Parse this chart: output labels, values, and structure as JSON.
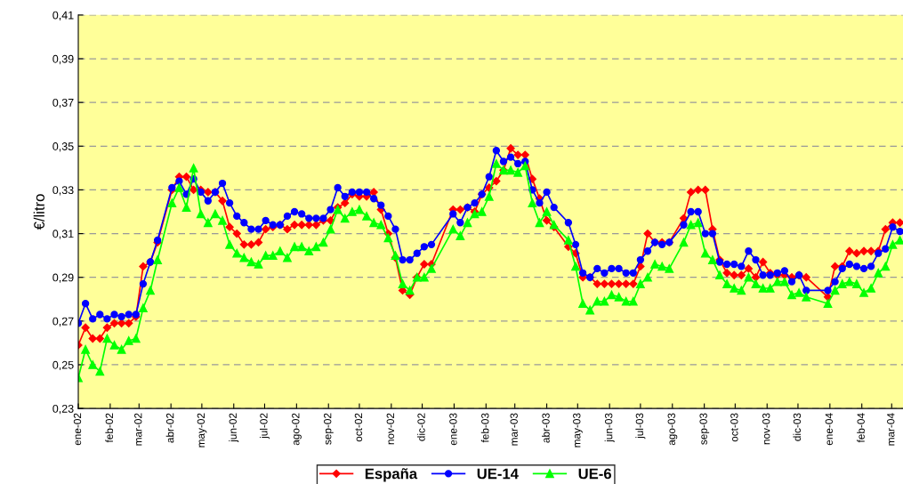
{
  "chart_data": {
    "type": "line",
    "ylabel": "€/litro",
    "x": [
      "2002-01-01",
      "2002-01-08",
      "2002-01-15",
      "2002-01-22",
      "2002-01-29",
      "2002-02-05",
      "2002-02-12",
      "2002-02-19",
      "2002-02-26",
      "2002-03-05",
      "2002-03-12",
      "2002-03-19",
      "2002-04-02",
      "2002-04-09",
      "2002-04-16",
      "2002-04-23",
      "2002-04-30",
      "2002-05-07",
      "2002-05-14",
      "2002-05-21",
      "2002-05-28",
      "2002-06-04",
      "2002-06-11",
      "2002-06-18",
      "2002-06-25",
      "2002-07-02",
      "2002-07-09",
      "2002-07-16",
      "2002-07-23",
      "2002-07-30",
      "2002-08-06",
      "2002-08-13",
      "2002-08-20",
      "2002-08-27",
      "2002-09-03",
      "2002-09-10",
      "2002-09-17",
      "2002-09-24",
      "2002-10-01",
      "2002-10-08",
      "2002-10-15",
      "2002-10-22",
      "2002-10-29",
      "2002-11-05",
      "2002-11-12",
      "2002-11-19",
      "2002-11-26",
      "2002-12-03",
      "2002-12-10",
      "2002-12-31",
      "2003-01-07",
      "2003-01-14",
      "2003-01-21",
      "2003-01-28",
      "2003-02-04",
      "2003-02-11",
      "2003-02-18",
      "2003-02-25",
      "2003-03-04",
      "2003-03-11",
      "2003-03-18",
      "2003-03-25",
      "2003-04-01",
      "2003-04-08",
      "2003-04-22",
      "2003-04-29",
      "2003-05-06",
      "2003-05-13",
      "2003-05-20",
      "2003-05-27",
      "2003-06-03",
      "2003-06-10",
      "2003-06-17",
      "2003-06-24",
      "2003-07-01",
      "2003-07-08",
      "2003-07-15",
      "2003-07-22",
      "2003-07-29",
      "2003-08-12",
      "2003-08-19",
      "2003-08-26",
      "2003-09-02",
      "2003-09-09",
      "2003-09-16",
      "2003-09-23",
      "2003-09-30",
      "2003-10-07",
      "2003-10-14",
      "2003-10-21",
      "2003-10-28",
      "2003-11-04",
      "2003-11-11",
      "2003-11-18",
      "2003-11-25",
      "2003-12-02",
      "2003-12-09",
      "2003-12-30",
      "2004-01-06",
      "2004-01-13",
      "2004-01-20",
      "2004-01-27",
      "2004-02-03",
      "2004-02-10",
      "2004-02-17",
      "2004-02-24",
      "2004-03-02",
      "2004-03-09"
    ],
    "series": [
      {
        "name": "España",
        "color": "#ff0000",
        "marker": "diamond",
        "values": [
          0.259,
          0.267,
          0.262,
          0.262,
          0.267,
          0.269,
          0.269,
          0.269,
          0.272,
          0.295,
          0.297,
          0.306,
          0.33,
          0.336,
          0.336,
          0.33,
          0.33,
          0.329,
          0.329,
          0.325,
          0.313,
          0.31,
          0.305,
          0.305,
          0.306,
          0.312,
          0.313,
          0.314,
          0.312,
          0.314,
          0.314,
          0.314,
          0.314,
          0.316,
          0.316,
          0.322,
          0.324,
          0.328,
          0.327,
          0.327,
          0.329,
          0.321,
          0.31,
          0.299,
          0.284,
          0.282,
          0.29,
          0.296,
          0.296,
          0.321,
          0.321,
          0.322,
          0.32,
          0.328,
          0.331,
          0.334,
          0.339,
          0.349,
          0.346,
          0.346,
          0.335,
          0.326,
          0.316,
          0.313,
          0.304,
          0.301,
          0.29,
          0.29,
          0.287,
          0.287,
          0.287,
          0.287,
          0.287,
          0.287,
          0.295,
          0.31,
          0.306,
          0.306,
          0.306,
          0.317,
          0.329,
          0.33,
          0.33,
          0.312,
          0.298,
          0.292,
          0.291,
          0.291,
          0.294,
          0.29,
          0.297,
          0.292,
          0.291,
          0.291,
          0.29,
          0.291,
          0.29,
          0.281,
          0.295,
          0.295,
          0.302,
          0.301,
          0.302,
          0.302,
          0.302,
          0.312,
          0.315,
          0.315
        ]
      },
      {
        "name": "UE-14",
        "color": "#0000ff",
        "marker": "circle",
        "values": [
          0.269,
          0.278,
          0.271,
          0.273,
          0.271,
          0.273,
          0.272,
          0.273,
          0.273,
          0.287,
          0.297,
          0.307,
          0.331,
          0.334,
          0.328,
          0.335,
          0.329,
          0.325,
          0.329,
          0.333,
          0.324,
          0.318,
          0.315,
          0.312,
          0.312,
          0.316,
          0.314,
          0.314,
          0.318,
          0.32,
          0.319,
          0.317,
          0.317,
          0.317,
          0.321,
          0.331,
          0.327,
          0.329,
          0.329,
          0.329,
          0.326,
          0.323,
          0.318,
          0.312,
          0.298,
          0.298,
          0.301,
          0.304,
          0.305,
          0.319,
          0.315,
          0.322,
          0.324,
          0.328,
          0.336,
          0.348,
          0.343,
          0.345,
          0.342,
          0.343,
          0.33,
          0.324,
          0.329,
          0.322,
          0.315,
          0.305,
          0.292,
          0.29,
          0.294,
          0.292,
          0.294,
          0.294,
          0.292,
          0.292,
          0.298,
          0.302,
          0.306,
          0.305,
          0.306,
          0.314,
          0.32,
          0.32,
          0.31,
          0.31,
          0.297,
          0.296,
          0.296,
          0.295,
          0.302,
          0.298,
          0.291,
          0.291,
          0.292,
          0.293,
          0.288,
          0.291,
          0.284,
          0.284,
          0.288,
          0.294,
          0.296,
          0.295,
          0.294,
          0.295,
          0.301,
          0.303,
          0.313,
          0.311
        ]
      },
      {
        "name": "UE-6",
        "color": "#00ff00",
        "marker": "triangle",
        "values": [
          0.244,
          0.257,
          0.25,
          0.247,
          0.262,
          0.259,
          0.257,
          0.261,
          0.262,
          0.276,
          0.284,
          0.298,
          0.324,
          0.331,
          0.322,
          0.34,
          0.319,
          0.315,
          0.319,
          0.316,
          0.305,
          0.301,
          0.299,
          0.297,
          0.296,
          0.3,
          0.3,
          0.302,
          0.299,
          0.304,
          0.304,
          0.302,
          0.304,
          0.306,
          0.312,
          0.321,
          0.317,
          0.32,
          0.321,
          0.318,
          0.315,
          0.314,
          0.308,
          0.3,
          0.287,
          0.284,
          0.29,
          0.29,
          0.294,
          0.312,
          0.309,
          0.315,
          0.319,
          0.32,
          0.327,
          0.342,
          0.339,
          0.339,
          0.338,
          0.341,
          0.324,
          0.315,
          0.32,
          0.314,
          0.307,
          0.295,
          0.278,
          0.275,
          0.279,
          0.279,
          0.282,
          0.281,
          0.279,
          0.279,
          0.287,
          0.29,
          0.296,
          0.295,
          0.294,
          0.306,
          0.314,
          0.315,
          0.301,
          0.298,
          0.291,
          0.287,
          0.285,
          0.284,
          0.29,
          0.287,
          0.285,
          0.285,
          0.288,
          0.288,
          0.282,
          0.283,
          0.281,
          0.278,
          0.284,
          0.287,
          0.288,
          0.287,
          0.283,
          0.285,
          0.292,
          0.295,
          0.305,
          0.307
        ]
      }
    ],
    "xlim": [
      "2002-01-01",
      "2004-03-12"
    ],
    "xticks": [
      {
        "value": "2002-01-01",
        "label": "ene-02"
      },
      {
        "value": "2002-02-01",
        "label": "feb-02"
      },
      {
        "value": "2002-03-01",
        "label": "mar-02"
      },
      {
        "value": "2002-04-01",
        "label": "abr-02"
      },
      {
        "value": "2002-05-01",
        "label": "may-02"
      },
      {
        "value": "2002-06-01",
        "label": "jun-02"
      },
      {
        "value": "2002-07-01",
        "label": "jul-02"
      },
      {
        "value": "2002-08-01",
        "label": "ago-02"
      },
      {
        "value": "2002-09-01",
        "label": "sep-02"
      },
      {
        "value": "2002-10-01",
        "label": "oct-02"
      },
      {
        "value": "2002-11-01",
        "label": "nov-02"
      },
      {
        "value": "2002-12-01",
        "label": "dic-02"
      },
      {
        "value": "2003-01-01",
        "label": "ene-03"
      },
      {
        "value": "2003-02-01",
        "label": "feb-03"
      },
      {
        "value": "2003-03-01",
        "label": "mar-03"
      },
      {
        "value": "2003-04-01",
        "label": "abr-03"
      },
      {
        "value": "2003-05-01",
        "label": "may-03"
      },
      {
        "value": "2003-06-01",
        "label": "jun-03"
      },
      {
        "value": "2003-07-01",
        "label": "jul-03"
      },
      {
        "value": "2003-08-01",
        "label": "ago-03"
      },
      {
        "value": "2003-09-01",
        "label": "sep-03"
      },
      {
        "value": "2003-10-01",
        "label": "oct-03"
      },
      {
        "value": "2003-11-01",
        "label": "nov-03"
      },
      {
        "value": "2003-12-01",
        "label": "dic-03"
      },
      {
        "value": "2004-01-01",
        "label": "ene-04"
      },
      {
        "value": "2004-02-01",
        "label": "feb-04"
      },
      {
        "value": "2004-03-01",
        "label": "mar-04"
      }
    ],
    "ylim": [
      0.23,
      0.41
    ],
    "yticks": [
      {
        "value": 0.23,
        "label": "0,23"
      },
      {
        "value": 0.25,
        "label": "0,25"
      },
      {
        "value": 0.27,
        "label": "0,27"
      },
      {
        "value": 0.29,
        "label": "0,29"
      },
      {
        "value": 0.31,
        "label": "0,31"
      },
      {
        "value": 0.33,
        "label": "0,33"
      },
      {
        "value": 0.35,
        "label": "0,35"
      },
      {
        "value": 0.37,
        "label": "0,37"
      },
      {
        "value": 0.39,
        "label": "0,39"
      },
      {
        "value": 0.41,
        "label": "0,41"
      }
    ],
    "grid": "y",
    "legend": "bottom",
    "line_style": "solid"
  }
}
